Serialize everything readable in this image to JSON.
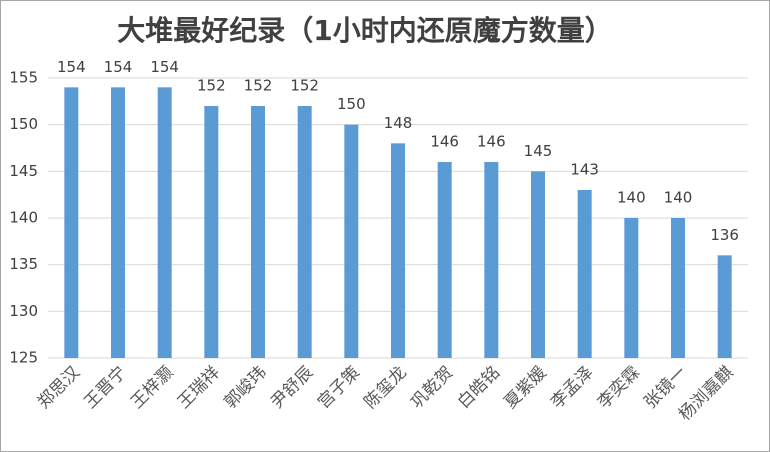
{
  "chart_data": {
    "type": "bar",
    "title": "大堆最好纪录（1小时内还原魔方数量）",
    "categories": [
      "郑思汉",
      "王晋宁",
      "王梓灏",
      "王瑞祥",
      "郭峻玮",
      "尹舒辰",
      "宫子策",
      "陈玺龙",
      "巩乾贺",
      "白皓铭",
      "夏紫媛",
      "李孟泽",
      "李奕霖",
      "张镜一",
      "杨浏嘉麒"
    ],
    "values": [
      154,
      154,
      154,
      152,
      152,
      152,
      150,
      148,
      146,
      146,
      145,
      143,
      140,
      140,
      136
    ],
    "color": "#5b9bd5",
    "ylim": [
      125,
      155
    ],
    "yticks": [
      125,
      130,
      135,
      140,
      145,
      150,
      155
    ],
    "grid": true
  }
}
